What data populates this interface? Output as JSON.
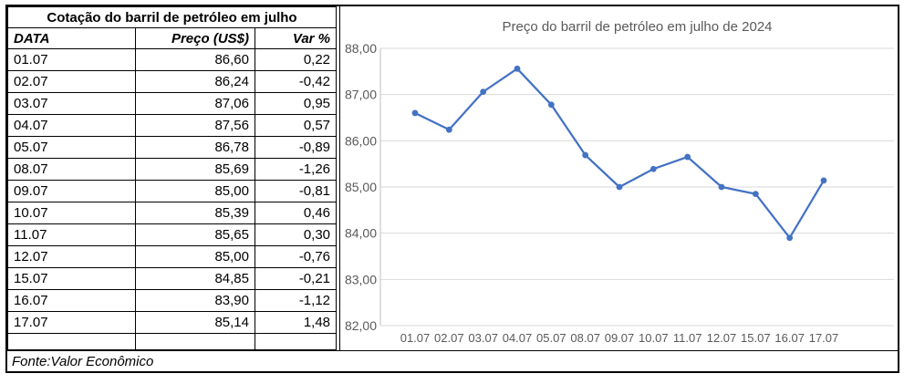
{
  "table": {
    "title": "Cotação do barril de petróleo em julho",
    "columns": [
      "DATA",
      "Preço (US$)",
      "Var %"
    ],
    "rows": [
      [
        "01.07",
        "86,60",
        "0,22"
      ],
      [
        "02.07",
        "86,24",
        "-0,42"
      ],
      [
        "03.07",
        "87,06",
        "0,95"
      ],
      [
        "04.07",
        "87,56",
        "0,57"
      ],
      [
        "05.07",
        "86,78",
        "-0,89"
      ],
      [
        "08.07",
        "85,69",
        "-1,26"
      ],
      [
        "09.07",
        "85,00",
        "-0,81"
      ],
      [
        "10.07",
        "85,39",
        "0,46"
      ],
      [
        "11.07",
        "85,65",
        "0,30"
      ],
      [
        "12.07",
        "85,00",
        "-0,76"
      ],
      [
        "15.07",
        "84,85",
        "-0,21"
      ],
      [
        "16.07",
        "83,90",
        "-1,12"
      ],
      [
        "17.07",
        "85,14",
        "1,48"
      ]
    ],
    "source": "Fonte:Valor Econômico"
  },
  "chart_data": {
    "type": "line",
    "title": "Preço do barril de petróleo em julho de 2024",
    "categories": [
      "01.07",
      "02.07",
      "03.07",
      "04.07",
      "05.07",
      "08.07",
      "09.07",
      "10.07",
      "11.07",
      "12.07",
      "15.07",
      "16.07",
      "17.07"
    ],
    "values": [
      86.6,
      86.24,
      87.06,
      87.56,
      86.78,
      85.69,
      85.0,
      85.39,
      85.65,
      85.0,
      84.85,
      83.9,
      85.14
    ],
    "xlabel": "",
    "ylabel": "",
    "ylim": [
      82,
      88
    ],
    "ytick_values": [
      82,
      83,
      84,
      85,
      86,
      87,
      88
    ],
    "ytick_labels": [
      "82,00",
      "83,00",
      "84,00",
      "85,00",
      "86,00",
      "87,00",
      "88,00"
    ],
    "grid": true,
    "legend": "none",
    "line_color": "#4472C4",
    "marker_color": "#4472C4",
    "grid_color": "#D9D9D9",
    "axis_color": "#BFBFBF",
    "text_color": "#595959"
  }
}
